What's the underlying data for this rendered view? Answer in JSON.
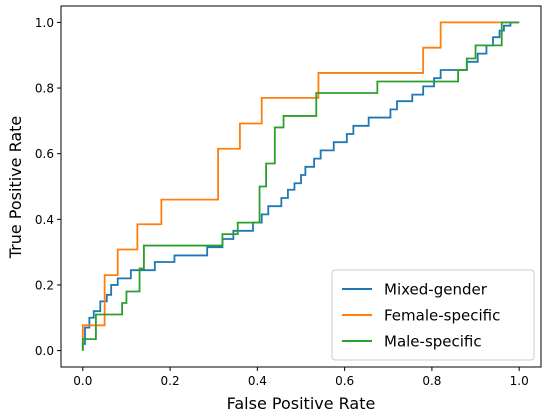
{
  "chart_data": {
    "type": "line",
    "title": "",
    "xlabel": "False Positive Rate",
    "ylabel": "True Positive Rate",
    "xlim": [
      -0.05,
      1.05
    ],
    "ylim": [
      -0.05,
      1.05
    ],
    "x_ticks": [
      0.0,
      0.2,
      0.4,
      0.6,
      0.8,
      1.0
    ],
    "x_tick_labels": [
      "0.0",
      "0.2",
      "0.4",
      "0.6",
      "0.8",
      "1.0"
    ],
    "y_ticks": [
      0.0,
      0.2,
      0.4,
      0.6,
      0.8,
      1.0
    ],
    "y_tick_labels": [
      "0.0",
      "0.2",
      "0.4",
      "0.6",
      "0.8",
      "1.0"
    ],
    "grid": false,
    "legend_position": "bottom-right",
    "series": [
      {
        "name": "Mixed-gender",
        "color": "#1f77b4",
        "x": [
          0.0,
          0.0,
          0.005,
          0.005,
          0.015,
          0.015,
          0.025,
          0.025,
          0.04,
          0.04,
          0.055,
          0.055,
          0.065,
          0.065,
          0.08,
          0.08,
          0.11,
          0.11,
          0.165,
          0.165,
          0.21,
          0.21,
          0.285,
          0.285,
          0.32,
          0.32,
          0.345,
          0.345,
          0.39,
          0.39,
          0.41,
          0.41,
          0.425,
          0.425,
          0.455,
          0.455,
          0.47,
          0.47,
          0.485,
          0.485,
          0.5,
          0.5,
          0.51,
          0.51,
          0.53,
          0.53,
          0.545,
          0.545,
          0.575,
          0.575,
          0.605,
          0.605,
          0.62,
          0.62,
          0.655,
          0.655,
          0.705,
          0.705,
          0.72,
          0.72,
          0.755,
          0.755,
          0.78,
          0.78,
          0.805,
          0.805,
          0.82,
          0.82,
          0.88,
          0.88,
          0.905,
          0.905,
          0.925,
          0.925,
          0.94,
          0.94,
          0.955,
          0.955,
          0.965,
          0.965,
          0.98,
          0.98,
          1.0
        ],
        "y": [
          0.0,
          0.02,
          0.02,
          0.07,
          0.07,
          0.1,
          0.1,
          0.12,
          0.12,
          0.15,
          0.15,
          0.17,
          0.17,
          0.2,
          0.2,
          0.22,
          0.22,
          0.245,
          0.245,
          0.27,
          0.27,
          0.29,
          0.29,
          0.315,
          0.315,
          0.34,
          0.34,
          0.365,
          0.365,
          0.39,
          0.39,
          0.415,
          0.415,
          0.44,
          0.44,
          0.465,
          0.465,
          0.49,
          0.49,
          0.51,
          0.51,
          0.535,
          0.535,
          0.56,
          0.56,
          0.585,
          0.585,
          0.61,
          0.61,
          0.635,
          0.635,
          0.66,
          0.66,
          0.685,
          0.685,
          0.71,
          0.71,
          0.735,
          0.735,
          0.76,
          0.76,
          0.78,
          0.78,
          0.805,
          0.805,
          0.83,
          0.83,
          0.855,
          0.855,
          0.88,
          0.88,
          0.905,
          0.905,
          0.93,
          0.93,
          0.955,
          0.955,
          0.975,
          0.975,
          0.99,
          0.99,
          1.0,
          1.0
        ]
      },
      {
        "name": "Female-specific",
        "color": "#ff7f0e",
        "x": [
          0.0,
          0.0,
          0.05,
          0.05,
          0.08,
          0.08,
          0.125,
          0.125,
          0.18,
          0.18,
          0.31,
          0.31,
          0.36,
          0.36,
          0.41,
          0.41,
          0.54,
          0.54,
          0.78,
          0.78,
          0.82,
          0.82,
          1.0
        ],
        "y": [
          0.0,
          0.077,
          0.077,
          0.23,
          0.23,
          0.308,
          0.308,
          0.385,
          0.385,
          0.46,
          0.46,
          0.615,
          0.615,
          0.692,
          0.692,
          0.77,
          0.77,
          0.846,
          0.846,
          0.923,
          0.923,
          1.0,
          1.0
        ]
      },
      {
        "name": "Male-specific",
        "color": "#2ca02c",
        "x": [
          0.0,
          0.0,
          0.03,
          0.03,
          0.09,
          0.09,
          0.1,
          0.1,
          0.13,
          0.13,
          0.14,
          0.14,
          0.32,
          0.32,
          0.355,
          0.355,
          0.405,
          0.405,
          0.42,
          0.42,
          0.44,
          0.44,
          0.46,
          0.46,
          0.535,
          0.535,
          0.675,
          0.675,
          0.86,
          0.86,
          0.88,
          0.88,
          0.9,
          0.9,
          0.96,
          0.96,
          1.0
        ],
        "y": [
          0.0,
          0.035,
          0.035,
          0.11,
          0.11,
          0.145,
          0.145,
          0.18,
          0.18,
          0.25,
          0.25,
          0.32,
          0.32,
          0.355,
          0.355,
          0.39,
          0.39,
          0.5,
          0.5,
          0.57,
          0.57,
          0.68,
          0.68,
          0.715,
          0.715,
          0.785,
          0.785,
          0.82,
          0.82,
          0.855,
          0.855,
          0.89,
          0.89,
          0.93,
          0.93,
          1.0,
          1.0
        ]
      }
    ]
  }
}
